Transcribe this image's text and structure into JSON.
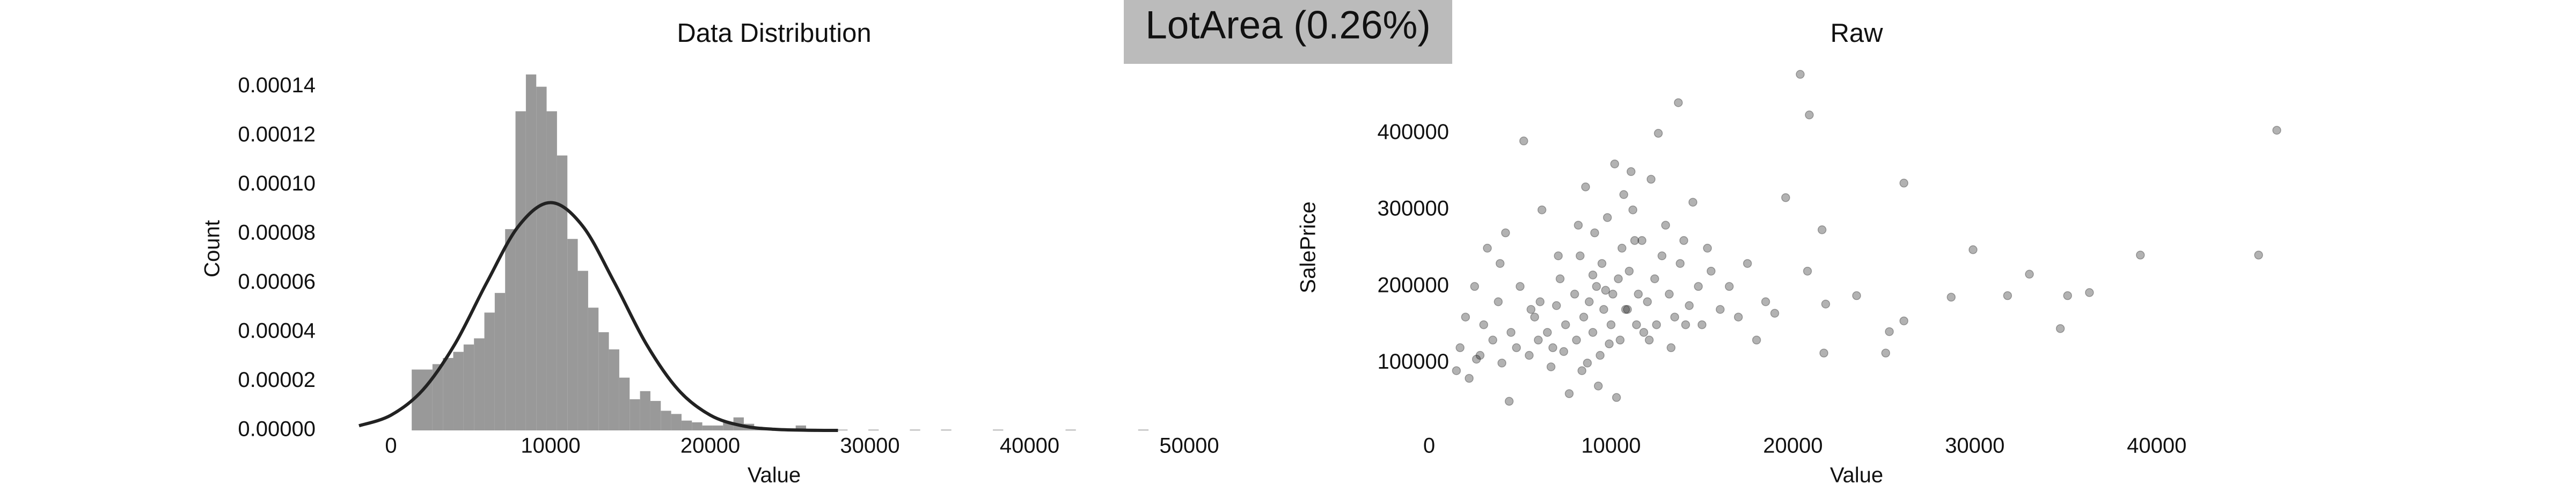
{
  "header": {
    "title": "LotArea (0.26%)"
  },
  "chart_data": [
    {
      "type": "histogram",
      "title": "Data Distribution",
      "xlabel": "Value",
      "ylabel": "Count",
      "bins": [
        1300,
        1950,
        2600,
        3250,
        3900,
        4550,
        5200,
        5850,
        6500,
        7150,
        7800,
        8450,
        9100,
        9750,
        10400,
        11050,
        11700,
        12350,
        13000,
        13650,
        14300,
        14950,
        15600,
        16250,
        16900,
        17550,
        18200,
        18850,
        19500,
        20150,
        20800,
        21450,
        22100,
        22750,
        23400,
        24050,
        24700,
        25350,
        26000,
        26650,
        27300,
        27950,
        28600,
        29250,
        29900,
        30550,
        31200,
        31850,
        32500,
        33150,
        33800,
        34450,
        35100,
        35750,
        36400,
        37050,
        37700,
        38350,
        39000,
        39650,
        40300,
        40950,
        41600,
        42250,
        42900,
        43550,
        44200,
        44850,
        45500,
        46150,
        46800,
        47450,
        48100,
        48750,
        49400,
        50050
      ],
      "values": [
        2.48e-05,
        2.48e-05,
        2.7e-05,
        2.95e-05,
        3.2e-05,
        3.5e-05,
        3.75e-05,
        4.8e-05,
        5.6e-05,
        8.2e-05,
        0.00013,
        0.000145,
        0.00014,
        0.00013,
        0.000112,
        7.8e-05,
        6.5e-05,
        5e-05,
        4e-05,
        3.3e-05,
        2.15e-05,
        1.27e-05,
        1.6e-05,
        1.2e-05,
        8e-06,
        6.7e-06,
        4e-06,
        3.3e-06,
        2e-06,
        2e-06,
        3.3e-06,
        5.3e-06,
        2.7e-06,
        7e-07,
        7e-07,
        4e-07,
        7e-07,
        2e-06,
        7e-07,
        3e-07,
        0,
        3e-07,
        0,
        0,
        3e-07,
        0,
        0,
        0,
        3e-07,
        0,
        0,
        3e-07,
        0,
        0,
        0,
        0,
        3e-07,
        0,
        0,
        0,
        0,
        0,
        0,
        3e-07,
        0,
        0,
        0,
        0,
        0,
        0,
        3e-07,
        0,
        0,
        0,
        0
      ],
      "color": "#999999",
      "fit": {
        "x": [
          -2000,
          0,
          2000,
          4000,
          6000,
          8000,
          10000,
          12000,
          14000,
          16000,
          18000,
          20000,
          22000,
          24000,
          26000,
          28000
        ],
        "y": [
          1.89e-06,
          6.21e-06,
          1.65e-05,
          3.51e-05,
          6.02e-05,
          8.33e-05,
          9.28e-05,
          8.33e-05,
          6.02e-05,
          3.51e-05,
          1.65e-05,
          6.21e-06,
          1.89e-06,
          4.6e-07,
          9e-08,
          0
        ],
        "color": "#222222"
      },
      "xlim": [
        -2000,
        50000
      ],
      "ylim": [
        0,
        0.000148
      ],
      "xticks": [
        0,
        10000,
        20000,
        30000,
        40000,
        50000
      ],
      "yticks": [
        {
          "value": 0,
          "label": "0.00000"
        },
        {
          "value": 2e-05,
          "label": "0.00002"
        },
        {
          "value": 4e-05,
          "label": "0.00004"
        },
        {
          "value": 6e-05,
          "label": "0.00006"
        },
        {
          "value": 8e-05,
          "label": "0.00008"
        },
        {
          "value": 0.0001,
          "label": "0.00010"
        },
        {
          "value": 0.00012,
          "label": "0.00012"
        },
        {
          "value": 0.00014,
          "label": "0.00014"
        }
      ]
    },
    {
      "type": "scatter",
      "title": "Raw",
      "xlabel": "Value",
      "ylabel": "SalePrice",
      "x": [
        1500,
        1700,
        2000,
        2200,
        2500,
        2800,
        3000,
        3200,
        3500,
        3800,
        4000,
        4200,
        4500,
        4800,
        5000,
        5200,
        5500,
        5800,
        6000,
        6200,
        6500,
        6800,
        7000,
        7200,
        7500,
        7700,
        8000,
        8100,
        8300,
        8500,
        8600,
        8800,
        9000,
        9100,
        9200,
        9400,
        9500,
        9600,
        9800,
        10000,
        10100,
        10200,
        10400,
        10500,
        10600,
        10800,
        11000,
        11200,
        11400,
        11500,
        11700,
        12000,
        12200,
        12400,
        12500,
        12800,
        13000,
        13200,
        13500,
        13800,
        14000,
        14300,
        14500,
        14800,
        15000,
        15300,
        15500,
        16000,
        16500,
        17000,
        17500,
        18000,
        18500,
        19000,
        2600,
        3900,
        5600,
        6700,
        7400,
        8200,
        8700,
        9300,
        9900,
        10300,
        10700,
        11300,
        11800,
        12600,
        13300,
        14100,
        6100,
        7100,
        8400,
        9700,
        10900,
        12100,
        4400,
        9000,
        11100,
        13700,
        20400,
        46600,
        45600,
        39100,
        36300,
        35100,
        34700,
        33000,
        31800,
        29900,
        28700,
        26100,
        26100,
        25300,
        25100,
        23500,
        21600,
        20900,
        21700,
        21800,
        20800,
        19600
      ],
      "y": [
        90000,
        120000,
        160000,
        80000,
        200000,
        110000,
        150000,
        250000,
        130000,
        180000,
        100000,
        270000,
        140000,
        120000,
        200000,
        390000,
        110000,
        160000,
        130000,
        300000,
        140000,
        120000,
        175000,
        210000,
        150000,
        60000,
        190000,
        130000,
        240000,
        160000,
        330000,
        180000,
        140000,
        270000,
        200000,
        110000,
        230000,
        170000,
        290000,
        150000,
        190000,
        360000,
        210000,
        130000,
        250000,
        170000,
        220000,
        300000,
        150000,
        190000,
        260000,
        180000,
        340000,
        210000,
        150000,
        240000,
        280000,
        190000,
        160000,
        230000,
        260000,
        175000,
        310000,
        200000,
        150000,
        250000,
        220000,
        170000,
        200000,
        160000,
        230000,
        130000,
        180000,
        165000,
        105000,
        230000,
        170000,
        95000,
        115000,
        280000,
        100000,
        70000,
        125000,
        55000,
        320000,
        260000,
        140000,
        400000,
        120000,
        150000,
        180000,
        240000,
        90000,
        195000,
        170000,
        130000,
        50000,
        215000,
        350000,
        440000,
        477000,
        404000,
        241000,
        241000,
        192000,
        188000,
        145000,
        216000,
        188000,
        248000,
        186000,
        335000,
        155000,
        141000,
        113000,
        188000,
        274000,
        424000,
        113000,
        177000,
        220000,
        316000
      ],
      "color": "#000000",
      "opacity": 0.3,
      "xlim": [
        0,
        47000
      ],
      "ylim": [
        12000,
        490000
      ],
      "xticks": [
        0,
        10000,
        20000,
        30000,
        40000
      ],
      "yticks": [
        100000,
        200000,
        300000,
        400000
      ]
    }
  ]
}
